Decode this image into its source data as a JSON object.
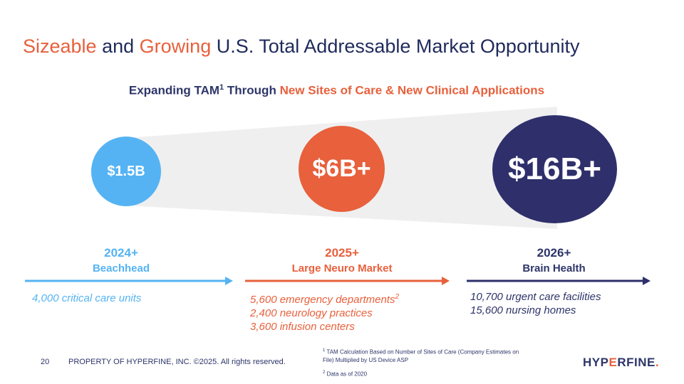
{
  "title": {
    "word1": "Sizeable",
    "word2": "and",
    "word3": "Growing",
    "rest": "U.S. Total Addressable Market Opportunity"
  },
  "subtitle": {
    "lead": "Expanding TAM",
    "sup": "1",
    "mid": "Through",
    "accent": "New Sites of Care & New Clinical Applications"
  },
  "circles": [
    {
      "value": "$1.5B"
    },
    {
      "value": "$6B+"
    },
    {
      "value": "$16B+"
    }
  ],
  "stages": [
    {
      "year": "2024+",
      "name": "Beachhead",
      "sites": [
        "4,000 critical care units"
      ]
    },
    {
      "year": "2025+",
      "name": "Large Neuro Market",
      "sites": [
        "5,600 emergency departments",
        "2,400 neurology practices",
        "3,600 infusion centers"
      ],
      "sup": "2"
    },
    {
      "year": "2026+",
      "name": "Brain Health",
      "sites": [
        "10,700 urgent care facilities",
        "15,600 nursing homes"
      ]
    }
  ],
  "colors": {
    "blue": "#55b3f3",
    "orange": "#e8603c",
    "navy": "#2e2f6b",
    "funnel": "#efefef"
  },
  "footer": {
    "page": "20",
    "property": "PROPERTY OF HYPERFINE, INC. ©2025. All rights reserved.",
    "note1_sup": "1",
    "note1": "TAM Calculation Based on Number of Sites of Care (Company Estimates on File) Multiplied by US Device ASP",
    "note2_sup": "2",
    "note2": "Data as of 2020"
  },
  "logo": {
    "part1": "HYP",
    "part2": "E",
    "part3": "RFINE",
    "dot": "."
  }
}
